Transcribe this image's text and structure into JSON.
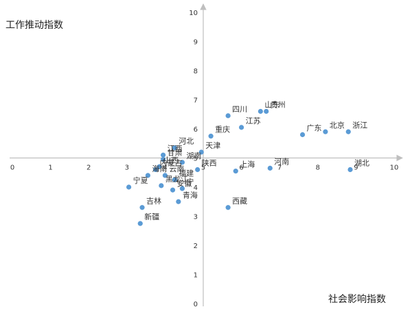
{
  "chart_data": {
    "type": "scatter",
    "title": "",
    "xlabel": "社会影响指数",
    "ylabel": "工作推动指数",
    "xlim": [
      0,
      10
    ],
    "ylim": [
      0,
      10
    ],
    "x_ticks": [
      "0",
      "1",
      "2",
      "3",
      "4",
      "5",
      "6",
      "7",
      "8",
      "9",
      "10"
    ],
    "y_ticks": [
      "0",
      "1",
      "2",
      "3",
      "4",
      "5",
      "6",
      "7",
      "8",
      "9",
      "10"
    ],
    "axis_cross": {
      "x": 5,
      "y": 5
    },
    "grid": false,
    "marker_color": "#5b9bd5",
    "points": [
      {
        "name": "山东",
        "x": 6.5,
        "y": 6.6
      },
      {
        "name": "贵州",
        "x": 6.65,
        "y": 6.6
      },
      {
        "name": "四川",
        "x": 5.65,
        "y": 6.45
      },
      {
        "name": "江苏",
        "x": 6.0,
        "y": 6.05
      },
      {
        "name": "北京",
        "x": 8.2,
        "y": 5.9
      },
      {
        "name": "浙江",
        "x": 8.8,
        "y": 5.9
      },
      {
        "name": "广东",
        "x": 7.6,
        "y": 5.8
      },
      {
        "name": "重庆",
        "x": 5.2,
        "y": 5.75
      },
      {
        "name": "天津",
        "x": 4.95,
        "y": 5.2
      },
      {
        "name": "河北",
        "x": 4.25,
        "y": 5.35
      },
      {
        "name": "江西",
        "x": 3.95,
        "y": 5.1
      },
      {
        "name": "湖南",
        "x": 4.45,
        "y": 4.85
      },
      {
        "name": "陕西",
        "x": 4.85,
        "y": 4.6
      },
      {
        "name": "甘肃",
        "x": 3.95,
        "y": 4.95
      },
      {
        "name": "山西",
        "x": 3.85,
        "y": 4.7
      },
      {
        "name": "内蒙古",
        "x": 3.75,
        "y": 4.6
      },
      {
        "name": "海南",
        "x": 3.55,
        "y": 4.4
      },
      {
        "name": "宁夏",
        "x": 3.05,
        "y": 4.0
      },
      {
        "name": "云南",
        "x": 4.0,
        "y": 4.4
      },
      {
        "name": "福建",
        "x": 4.25,
        "y": 4.25
      },
      {
        "name": "黑龙江",
        "x": 3.9,
        "y": 4.05
      },
      {
        "name": "安徽",
        "x": 4.2,
        "y": 3.9
      },
      {
        "name": "吉林",
        "x": 3.4,
        "y": 3.3
      },
      {
        "name": "青海",
        "x": 4.35,
        "y": 3.5
      },
      {
        "name": "宁",
        "x": 4.45,
        "y": 3.95
      },
      {
        "name": "新疆",
        "x": 3.35,
        "y": 2.75
      },
      {
        "name": "西藏",
        "x": 5.65,
        "y": 3.3
      },
      {
        "name": "上海",
        "x": 5.85,
        "y": 4.55
      },
      {
        "name": "河南",
        "x": 6.75,
        "y": 4.65
      },
      {
        "name": "湖北",
        "x": 8.85,
        "y": 4.6
      }
    ]
  }
}
